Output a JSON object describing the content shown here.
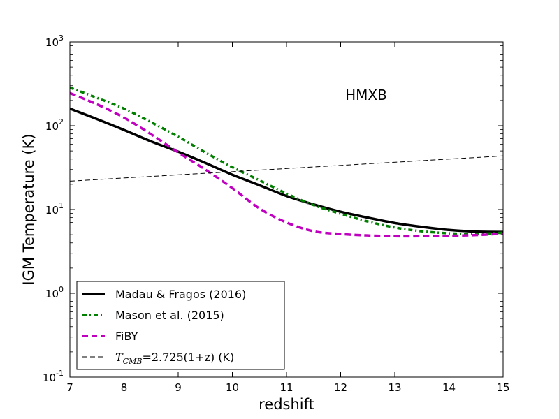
{
  "chart_data": {
    "type": "line",
    "xlabel": "redshift",
    "ylabel": "IGM Temperature (K)",
    "annotation": "HMXB",
    "xlim": [
      7,
      15
    ],
    "ylim": [
      0.1,
      1000
    ],
    "yscale": "log",
    "x_ticks": [
      7,
      8,
      9,
      10,
      11,
      12,
      13,
      14,
      15
    ],
    "y_ticks": [
      {
        "value": 0.1,
        "base": "10",
        "exp": "-1"
      },
      {
        "value": 1,
        "base": "10",
        "exp": "0"
      },
      {
        "value": 10,
        "base": "10",
        "exp": "1"
      },
      {
        "value": 100,
        "base": "10",
        "exp": "2"
      },
      {
        "value": 1000,
        "base": "10",
        "exp": "3"
      }
    ],
    "legend_position": "lower-left",
    "series": [
      {
        "name": "Madau & Fragos (2016)",
        "color": "#000000",
        "style": "solid",
        "x": [
          7.0,
          7.5,
          8.0,
          8.5,
          9.0,
          9.5,
          10.0,
          10.5,
          11.0,
          11.5,
          12.0,
          12.5,
          13.0,
          13.5,
          14.0,
          14.5,
          15.0
        ],
        "y": [
          160,
          120,
          89,
          65,
          49,
          36,
          26,
          19.5,
          14.5,
          11.5,
          9.4,
          8.0,
          6.9,
          6.2,
          5.7,
          5.45,
          5.4
        ]
      },
      {
        "name": "Mason et al. (2015)",
        "color": "#007f00",
        "style": "dashdot",
        "x": [
          7.0,
          7.5,
          8.0,
          8.5,
          9.0,
          9.5,
          10.0,
          10.5,
          11.0,
          11.5,
          12.0,
          12.5,
          13.0,
          13.5,
          14.0,
          14.5,
          15.0
        ],
        "y": [
          285,
          215,
          160,
          110,
          74,
          48,
          32,
          22.3,
          15.5,
          11.3,
          8.9,
          7.2,
          6.1,
          5.5,
          5.2,
          5.1,
          5.3
        ]
      },
      {
        "name": "FiBY",
        "color": "#bf00bf",
        "style": "dashed",
        "x": [
          7.0,
          7.5,
          8.0,
          8.5,
          9.0,
          9.5,
          10.0,
          10.5,
          11.0,
          11.5,
          12.0,
          12.5,
          13.0,
          13.5,
          14.0,
          14.5,
          15.0
        ],
        "y": [
          245,
          180,
          125,
          79,
          48,
          30,
          18,
          10.3,
          7.0,
          5.5,
          5.1,
          4.9,
          4.8,
          4.8,
          4.85,
          4.95,
          5.15
        ]
      },
      {
        "name": "T_CMB = 2.725(1+z) (K)",
        "legend_math": "T",
        "legend_sub": "CMB",
        "legend_rest": "=2.725(1+z)",
        "legend_unit": " (K)",
        "color": "#000000",
        "style": "thin-dashed",
        "x": [
          7.0,
          15.0
        ],
        "y": [
          21.8,
          43.6
        ]
      }
    ]
  }
}
